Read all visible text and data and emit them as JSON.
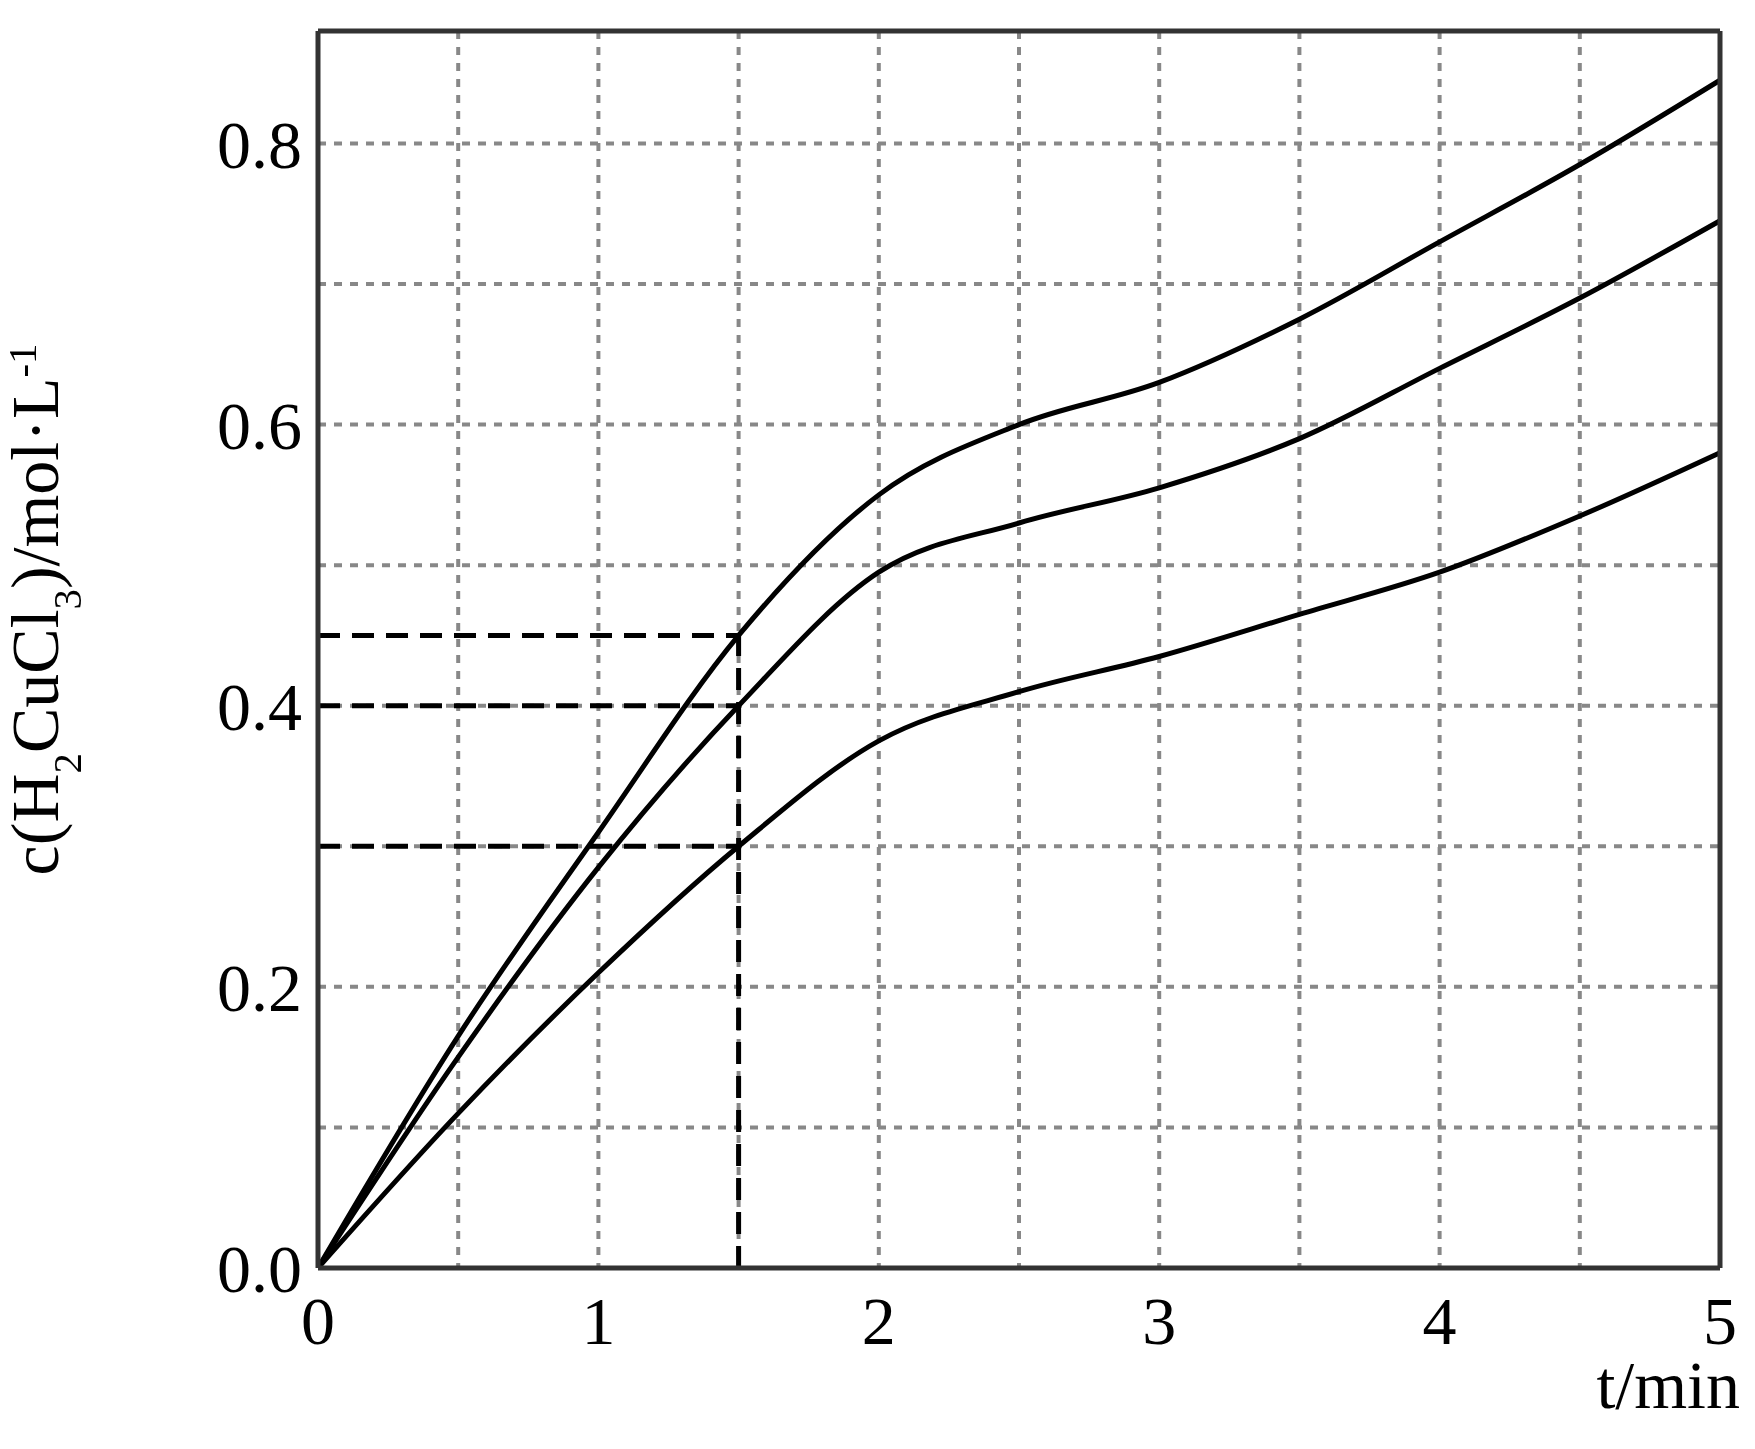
{
  "chart_data": {
    "type": "line",
    "xlabel": "t/min",
    "ylabel": "c(H$_{2}$CuCl$_{3}$)/mol·L$^{-1}$",
    "xlim": [
      0,
      5
    ],
    "ylim": [
      0,
      0.88
    ],
    "xticks": [
      0,
      {
        "value": 0.5,
        "label": null
      },
      1,
      {
        "value": 1.5,
        "label": null
      },
      2,
      {
        "value": 2.5,
        "label": null
      },
      3,
      {
        "value": 3.5,
        "label": null
      },
      4,
      {
        "value": 4.5,
        "label": null
      },
      5
    ],
    "yticks": [
      {
        "value": 0,
        "label": "0.0"
      },
      {
        "value": 0.1,
        "label": null
      },
      {
        "value": 0.2,
        "label": "0.2"
      },
      {
        "value": 0.3,
        "label": null
      },
      {
        "value": 0.4,
        "label": "0.4"
      },
      {
        "value": 0.5,
        "label": null
      },
      {
        "value": 0.6,
        "label": "0.6"
      },
      {
        "value": 0.7,
        "label": null
      },
      {
        "value": 0.8,
        "label": "0.8"
      }
    ],
    "grid": true,
    "marker": "none",
    "line_style": "solid",
    "series": [
      {
        "color": "#000000",
        "x": [
          0,
          0.5,
          1,
          1.5,
          2,
          2.5,
          3,
          3.5,
          4,
          4.5,
          5
        ],
        "values": [
          0,
          0.165,
          0.31,
          0.45,
          0.55,
          0.6,
          0.63,
          0.675,
          0.73,
          0.785,
          0.845
        ]
      },
      {
        "color": "#000000",
        "x": [
          0,
          0.5,
          1,
          1.5,
          2,
          2.5,
          3,
          3.5,
          4,
          4.5,
          5
        ],
        "values": [
          0,
          0.15,
          0.285,
          0.4,
          0.495,
          0.53,
          0.555,
          0.59,
          0.64,
          0.69,
          0.745
        ]
      },
      {
        "color": "#000000",
        "x": [
          0,
          0.5,
          1,
          1.5,
          2,
          2.5,
          3,
          3.5,
          4,
          4.5,
          5
        ],
        "values": [
          0,
          0.11,
          0.21,
          0.3,
          0.375,
          0.41,
          0.435,
          0.465,
          0.495,
          0.535,
          0.58
        ]
      },
      {
        "color": "#000000",
        "line_style": "dashed",
        "x": [
          0,
          1.5
        ],
        "values": [
          0.45,
          0.45
        ]
      },
      {
        "color": "#000000",
        "line_style": "dashed",
        "x": [
          0,
          1.5
        ],
        "values": [
          0.4,
          0.4
        ]
      },
      {
        "color": "#000000",
        "line_style": "dashed",
        "x": [
          0,
          1.5
        ],
        "values": [
          0.3,
          0.3
        ]
      },
      {
        "color": "#000000",
        "line_style": "dashed",
        "x": [
          1.5,
          1.5
        ],
        "values": [
          0,
          0.45
        ]
      }
    ]
  }
}
